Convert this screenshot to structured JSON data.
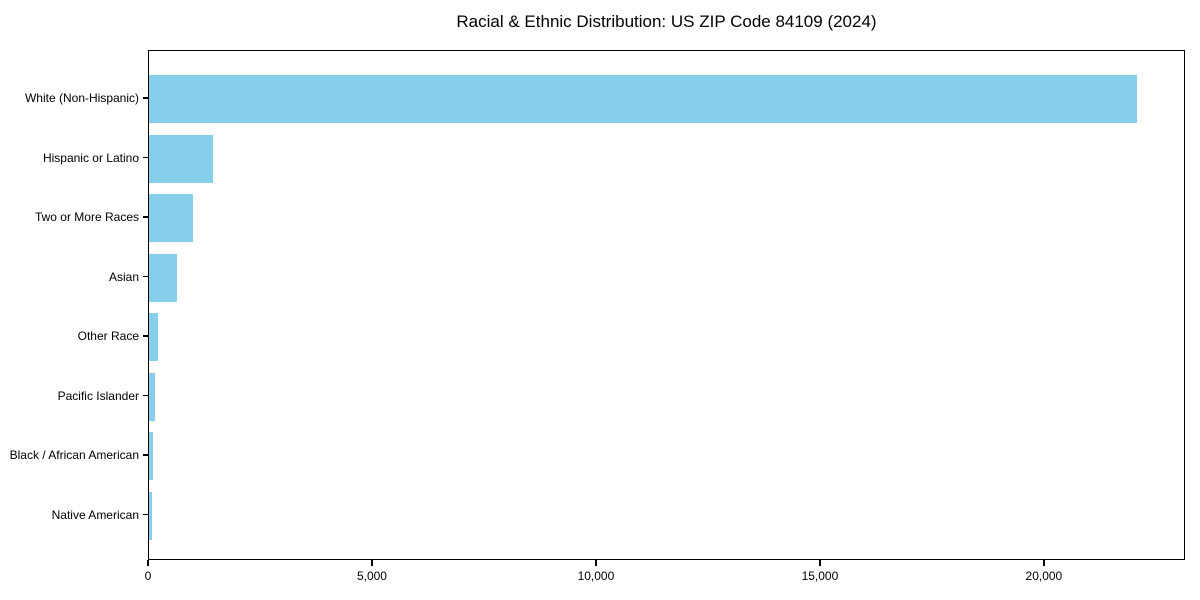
{
  "chart_data": {
    "type": "bar",
    "orientation": "horizontal",
    "title": "Racial & Ethnic Distribution: US ZIP Code 84109 (2024)",
    "categories": [
      "White (Non-Hispanic)",
      "Hispanic or Latino",
      "Two or More Races",
      "Asian",
      "Other Race",
      "Pacific Islander",
      "Black / African American",
      "Native American"
    ],
    "values": [
      22060,
      1435,
      980,
      630,
      210,
      140,
      85,
      65
    ],
    "xlabel": "",
    "ylabel": "",
    "xlim": [
      0,
      23150
    ],
    "x_ticks": [
      0,
      5000,
      10000,
      15000,
      20000
    ],
    "x_tick_labels": [
      "0",
      "5,000",
      "10,000",
      "15,000",
      "20,000"
    ],
    "bar_color": "#87CEEB",
    "spine_color": "#000000",
    "grid": false,
    "legend": false
  }
}
